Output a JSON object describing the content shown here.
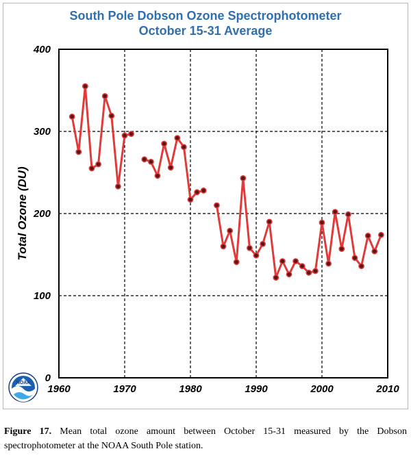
{
  "caption": {
    "label": "Figure 17.",
    "text": "Mean total ozone amount between October 15-31 measured by the Dobson spectrophotometer at the NOAA South Pole station."
  },
  "logo": {
    "text": "NOAA",
    "icon": "noaa-logo-icon"
  },
  "chart_data": {
    "type": "line",
    "title": [
      "South Pole Dobson Ozone Spectrophotometer",
      "October 15-31 Average"
    ],
    "xlabel": "",
    "ylabel": "Total Ozone (DU)",
    "xlim": [
      1960,
      2010
    ],
    "ylim": [
      0,
      400
    ],
    "xticks": [
      1960,
      1970,
      1980,
      1990,
      2000,
      2010
    ],
    "yticks": [
      0,
      100,
      200,
      300,
      400
    ],
    "grid": true,
    "colors": {
      "line": "#e03a3a",
      "marker": "#5a1515",
      "title": "#2f6fb0"
    },
    "segments": [
      {
        "x": [
          1962,
          1963,
          1964,
          1965,
          1966,
          1967,
          1968,
          1969,
          1970,
          1971
        ],
        "y": [
          318,
          275,
          355,
          255,
          260,
          343,
          319,
          233,
          295,
          297
        ]
      },
      {
        "x": [
          1973,
          1974,
          1975,
          1976,
          1977,
          1978,
          1979,
          1980,
          1981,
          1982
        ],
        "y": [
          266,
          263,
          246,
          285,
          256,
          292,
          281,
          217,
          226,
          228
        ]
      },
      {
        "x": [
          1984,
          1985,
          1986,
          1987,
          1988,
          1989,
          1990,
          1991,
          1992,
          1993,
          1994,
          1995,
          1996,
          1997,
          1998,
          1999,
          2000,
          2001,
          2002,
          2003,
          2004,
          2005,
          2006,
          2007,
          2008,
          2009
        ],
        "y": [
          210,
          160,
          179,
          141,
          243,
          158,
          149,
          163,
          190,
          122,
          142,
          126,
          142,
          136,
          128,
          130,
          189,
          139,
          202,
          157,
          199,
          146,
          136,
          173,
          154,
          174
        ]
      }
    ]
  }
}
